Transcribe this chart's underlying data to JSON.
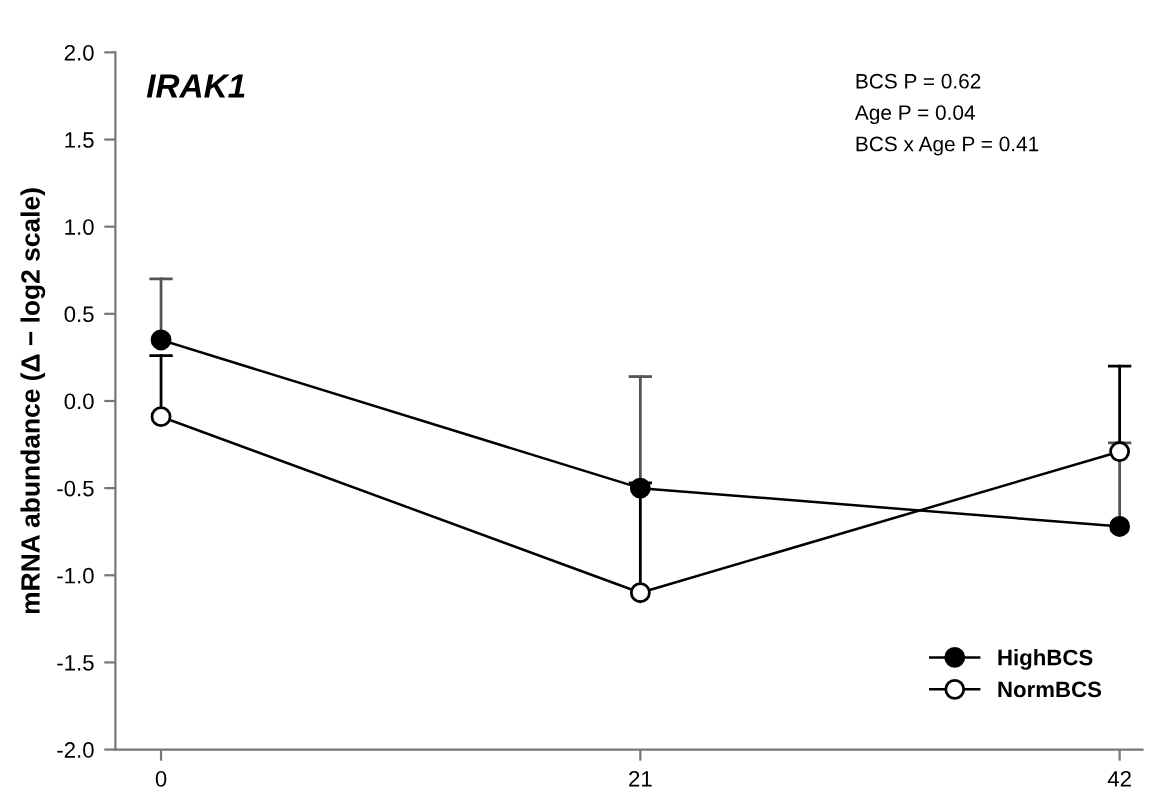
{
  "chart_data": {
    "type": "line",
    "title": "IRAK1",
    "ylabel": "mRNA abundance (Δ − log2 scale)",
    "x": [
      0,
      21,
      42
    ],
    "xlim": [
      -2,
      43
    ],
    "xticks": [
      0,
      21,
      42
    ],
    "ylim": [
      -2.0,
      2.0
    ],
    "yticks": [
      {
        "value": -2,
        "label": "-2.0"
      },
      {
        "value": -1.5,
        "label": "-1.5"
      },
      {
        "value": -1,
        "label": "-1.0"
      },
      {
        "value": -0.5,
        "label": "-0.5"
      },
      {
        "value": 0,
        "label": "0.0"
      },
      {
        "value": 0.5,
        "label": "0.5"
      },
      {
        "value": 1,
        "label": "1.0"
      },
      {
        "value": 1.5,
        "label": "1.5"
      },
      {
        "value": 2,
        "label": "2.0"
      }
    ],
    "series": [
      {
        "name": "HighBCS",
        "color": "#000000",
        "marker": "circle",
        "values": [
          0.35,
          -0.5,
          -0.72
        ],
        "errors": [
          [
            0.35,
            0.7
          ],
          [
            -0.5,
            0.14
          ],
          [
            -0.72,
            -0.24
          ]
        ]
      },
      {
        "name": "NormBCS",
        "color": "#ffffff",
        "marker": "circle",
        "values": [
          -0.09,
          -1.1,
          -0.29
        ],
        "errors": [
          [
            -0.09,
            0.26
          ],
          [
            -1.1,
            -0.47
          ],
          [
            -0.29,
            0.2
          ]
        ]
      }
    ],
    "annotations": [
      "BCS P = 0.62",
      "Age P = 0.04",
      "BCS x Age P = 0.41"
    ],
    "legend": "bottom right",
    "grid": false
  }
}
